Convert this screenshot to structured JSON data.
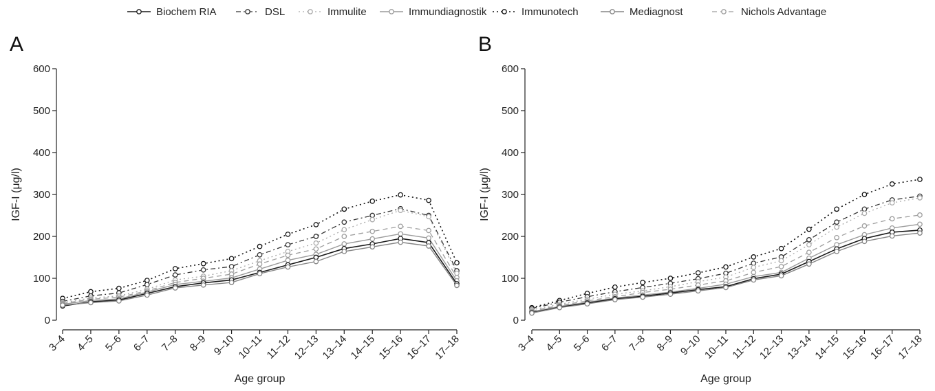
{
  "legend": {
    "entries": [
      "Biochem RIA",
      "DSL",
      "Immulite",
      "Immundiagnostik",
      "Immunotech",
      "Mediagnost",
      "Nichols Advantage"
    ]
  },
  "styles": {
    "Biochem RIA": {
      "color": "#1a1a1a",
      "dash": "none",
      "width": 1.6,
      "marker": "#1a1a1a"
    },
    "DSL": {
      "color": "#333333",
      "dash": "7 4 2 4",
      "width": 1.3,
      "marker": "#333333"
    },
    "Immulite": {
      "color": "#aaaaaa",
      "dash": "2 4",
      "width": 1.3,
      "marker": "#aaaaaa"
    },
    "Immundiagnostik": {
      "color": "#9a9a9a",
      "dash": "none",
      "width": 1.4,
      "marker": "#9a9a9a"
    },
    "Immunotech": {
      "color": "#111111",
      "dash": "2 4",
      "width": 1.6,
      "marker": "#111111"
    },
    "Mediagnost": {
      "color": "#858585",
      "dash": "none",
      "width": 1.4,
      "marker": "#858585"
    },
    "Nichols Advantage": {
      "color": "#9d9d9d",
      "dash": "7 5",
      "width": 1.3,
      "marker": "#9d9d9d"
    }
  },
  "chart_data": [
    {
      "type": "line",
      "panel_label": "A",
      "xlabel": "Age group",
      "ylabel": "IGF-I (μg/l)",
      "ylim": [
        0,
        600
      ],
      "yticks": [
        0,
        100,
        200,
        300,
        400,
        500,
        600
      ],
      "categories": [
        "3–4",
        "4–5",
        "5–6",
        "6–7",
        "7–8",
        "8–9",
        "9–10",
        "10–11",
        "11–12",
        "12–13",
        "13–14",
        "14–15",
        "15–16",
        "16–17",
        "17–18"
      ],
      "series": [
        {
          "name": "Immunotech",
          "values": [
            52,
            68,
            76,
            95,
            123,
            135,
            147,
            176,
            205,
            228,
            265,
            284,
            299,
            286,
            137
          ]
        },
        {
          "name": "DSL",
          "values": [
            45,
            58,
            65,
            85,
            108,
            120,
            128,
            156,
            180,
            200,
            234,
            250,
            266,
            250,
            118
          ]
        },
        {
          "name": "Immulite",
          "values": [
            42,
            53,
            58,
            74,
            96,
            105,
            118,
            142,
            164,
            184,
            216,
            240,
            262,
            247,
            112
          ]
        },
        {
          "name": "Nichols Advantage",
          "values": [
            40,
            50,
            55,
            70,
            90,
            100,
            110,
            134,
            155,
            170,
            200,
            212,
            224,
            214,
            102
          ]
        },
        {
          "name": "Immundiagnostik",
          "values": [
            38,
            47,
            51,
            67,
            85,
            93,
            101,
            122,
            143,
            157,
            182,
            194,
            206,
            196,
            94
          ]
        },
        {
          "name": "Biochem RIA",
          "values": [
            34,
            44,
            48,
            64,
            80,
            89,
            96,
            114,
            132,
            150,
            171,
            182,
            195,
            185,
            87
          ]
        },
        {
          "name": "Mediagnost",
          "values": [
            36,
            42,
            46,
            60,
            77,
            84,
            90,
            111,
            127,
            140,
            164,
            175,
            186,
            177,
            83
          ]
        }
      ]
    },
    {
      "type": "line",
      "panel_label": "B",
      "xlabel": "Age group",
      "ylabel": "IGF-I (μg/l)",
      "ylim": [
        0,
        600
      ],
      "yticks": [
        0,
        100,
        200,
        300,
        400,
        500,
        600
      ],
      "categories": [
        "3–4",
        "4–5",
        "5–6",
        "6–7",
        "7–8",
        "8–9",
        "9–10",
        "10–11",
        "11–12",
        "12–13",
        "13–14",
        "14–15",
        "15–16",
        "16–17",
        "17–18"
      ],
      "series": [
        {
          "name": "Immunotech",
          "values": [
            30,
            47,
            64,
            79,
            90,
            100,
            113,
            127,
            151,
            171,
            217,
            265,
            300,
            325,
            336
          ]
        },
        {
          "name": "DSL",
          "values": [
            28,
            43,
            56,
            68,
            78,
            88,
            99,
            112,
            136,
            151,
            192,
            234,
            265,
            287,
            296
          ]
        },
        {
          "name": "Immulite",
          "values": [
            25,
            38,
            50,
            62,
            70,
            80,
            92,
            103,
            126,
            142,
            180,
            222,
            255,
            280,
            292
          ]
        },
        {
          "name": "Nichols Advantage",
          "values": [
            22,
            35,
            46,
            56,
            66,
            74,
            84,
            94,
            114,
            128,
            162,
            197,
            225,
            242,
            251
          ]
        },
        {
          "name": "Immundiagnostik",
          "values": [
            20,
            33,
            43,
            53,
            60,
            67,
            76,
            86,
            104,
            114,
            148,
            180,
            204,
            220,
            229
          ]
        },
        {
          "name": "Biochem RIA",
          "values": [
            18,
            31,
            41,
            51,
            57,
            65,
            73,
            80,
            99,
            110,
            140,
            170,
            195,
            210,
            215
          ]
        },
        {
          "name": "Mediagnost",
          "values": [
            17,
            30,
            39,
            49,
            55,
            62,
            70,
            78,
            96,
            106,
            134,
            164,
            188,
            201,
            208
          ]
        }
      ]
    }
  ]
}
